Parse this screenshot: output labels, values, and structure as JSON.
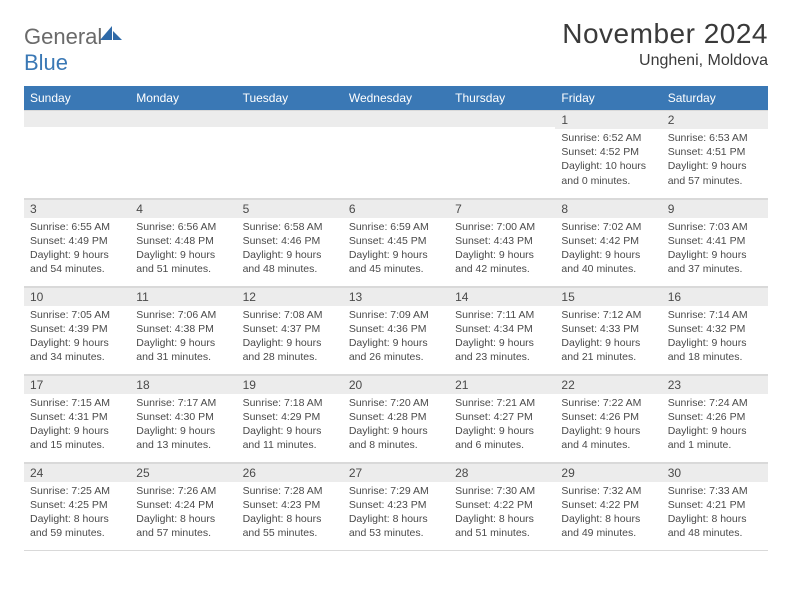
{
  "logo": {
    "general": "General",
    "blue": "Blue"
  },
  "title": "November 2024",
  "subtitle": "Ungheni, Moldova",
  "colors": {
    "header_bg": "#3a78b5",
    "header_fg": "#ffffff",
    "daynum_bg": "#ececec",
    "text": "#4a4a4a",
    "border": "#d9d9d9",
    "logo_gray": "#6a6a6a",
    "logo_blue": "#3a78b5"
  },
  "weekdays": [
    "Sunday",
    "Monday",
    "Tuesday",
    "Wednesday",
    "Thursday",
    "Friday",
    "Saturday"
  ],
  "weeks": [
    [
      null,
      null,
      null,
      null,
      null,
      {
        "n": "1",
        "sunrise": "Sunrise: 6:52 AM",
        "sunset": "Sunset: 4:52 PM",
        "day1": "Daylight: 10 hours",
        "day2": "and 0 minutes."
      },
      {
        "n": "2",
        "sunrise": "Sunrise: 6:53 AM",
        "sunset": "Sunset: 4:51 PM",
        "day1": "Daylight: 9 hours",
        "day2": "and 57 minutes."
      }
    ],
    [
      {
        "n": "3",
        "sunrise": "Sunrise: 6:55 AM",
        "sunset": "Sunset: 4:49 PM",
        "day1": "Daylight: 9 hours",
        "day2": "and 54 minutes."
      },
      {
        "n": "4",
        "sunrise": "Sunrise: 6:56 AM",
        "sunset": "Sunset: 4:48 PM",
        "day1": "Daylight: 9 hours",
        "day2": "and 51 minutes."
      },
      {
        "n": "5",
        "sunrise": "Sunrise: 6:58 AM",
        "sunset": "Sunset: 4:46 PM",
        "day1": "Daylight: 9 hours",
        "day2": "and 48 minutes."
      },
      {
        "n": "6",
        "sunrise": "Sunrise: 6:59 AM",
        "sunset": "Sunset: 4:45 PM",
        "day1": "Daylight: 9 hours",
        "day2": "and 45 minutes."
      },
      {
        "n": "7",
        "sunrise": "Sunrise: 7:00 AM",
        "sunset": "Sunset: 4:43 PM",
        "day1": "Daylight: 9 hours",
        "day2": "and 42 minutes."
      },
      {
        "n": "8",
        "sunrise": "Sunrise: 7:02 AM",
        "sunset": "Sunset: 4:42 PM",
        "day1": "Daylight: 9 hours",
        "day2": "and 40 minutes."
      },
      {
        "n": "9",
        "sunrise": "Sunrise: 7:03 AM",
        "sunset": "Sunset: 4:41 PM",
        "day1": "Daylight: 9 hours",
        "day2": "and 37 minutes."
      }
    ],
    [
      {
        "n": "10",
        "sunrise": "Sunrise: 7:05 AM",
        "sunset": "Sunset: 4:39 PM",
        "day1": "Daylight: 9 hours",
        "day2": "and 34 minutes."
      },
      {
        "n": "11",
        "sunrise": "Sunrise: 7:06 AM",
        "sunset": "Sunset: 4:38 PM",
        "day1": "Daylight: 9 hours",
        "day2": "and 31 minutes."
      },
      {
        "n": "12",
        "sunrise": "Sunrise: 7:08 AM",
        "sunset": "Sunset: 4:37 PM",
        "day1": "Daylight: 9 hours",
        "day2": "and 28 minutes."
      },
      {
        "n": "13",
        "sunrise": "Sunrise: 7:09 AM",
        "sunset": "Sunset: 4:36 PM",
        "day1": "Daylight: 9 hours",
        "day2": "and 26 minutes."
      },
      {
        "n": "14",
        "sunrise": "Sunrise: 7:11 AM",
        "sunset": "Sunset: 4:34 PM",
        "day1": "Daylight: 9 hours",
        "day2": "and 23 minutes."
      },
      {
        "n": "15",
        "sunrise": "Sunrise: 7:12 AM",
        "sunset": "Sunset: 4:33 PM",
        "day1": "Daylight: 9 hours",
        "day2": "and 21 minutes."
      },
      {
        "n": "16",
        "sunrise": "Sunrise: 7:14 AM",
        "sunset": "Sunset: 4:32 PM",
        "day1": "Daylight: 9 hours",
        "day2": "and 18 minutes."
      }
    ],
    [
      {
        "n": "17",
        "sunrise": "Sunrise: 7:15 AM",
        "sunset": "Sunset: 4:31 PM",
        "day1": "Daylight: 9 hours",
        "day2": "and 15 minutes."
      },
      {
        "n": "18",
        "sunrise": "Sunrise: 7:17 AM",
        "sunset": "Sunset: 4:30 PM",
        "day1": "Daylight: 9 hours",
        "day2": "and 13 minutes."
      },
      {
        "n": "19",
        "sunrise": "Sunrise: 7:18 AM",
        "sunset": "Sunset: 4:29 PM",
        "day1": "Daylight: 9 hours",
        "day2": "and 11 minutes."
      },
      {
        "n": "20",
        "sunrise": "Sunrise: 7:20 AM",
        "sunset": "Sunset: 4:28 PM",
        "day1": "Daylight: 9 hours",
        "day2": "and 8 minutes."
      },
      {
        "n": "21",
        "sunrise": "Sunrise: 7:21 AM",
        "sunset": "Sunset: 4:27 PM",
        "day1": "Daylight: 9 hours",
        "day2": "and 6 minutes."
      },
      {
        "n": "22",
        "sunrise": "Sunrise: 7:22 AM",
        "sunset": "Sunset: 4:26 PM",
        "day1": "Daylight: 9 hours",
        "day2": "and 4 minutes."
      },
      {
        "n": "23",
        "sunrise": "Sunrise: 7:24 AM",
        "sunset": "Sunset: 4:26 PM",
        "day1": "Daylight: 9 hours",
        "day2": "and 1 minute."
      }
    ],
    [
      {
        "n": "24",
        "sunrise": "Sunrise: 7:25 AM",
        "sunset": "Sunset: 4:25 PM",
        "day1": "Daylight: 8 hours",
        "day2": "and 59 minutes."
      },
      {
        "n": "25",
        "sunrise": "Sunrise: 7:26 AM",
        "sunset": "Sunset: 4:24 PM",
        "day1": "Daylight: 8 hours",
        "day2": "and 57 minutes."
      },
      {
        "n": "26",
        "sunrise": "Sunrise: 7:28 AM",
        "sunset": "Sunset: 4:23 PM",
        "day1": "Daylight: 8 hours",
        "day2": "and 55 minutes."
      },
      {
        "n": "27",
        "sunrise": "Sunrise: 7:29 AM",
        "sunset": "Sunset: 4:23 PM",
        "day1": "Daylight: 8 hours",
        "day2": "and 53 minutes."
      },
      {
        "n": "28",
        "sunrise": "Sunrise: 7:30 AM",
        "sunset": "Sunset: 4:22 PM",
        "day1": "Daylight: 8 hours",
        "day2": "and 51 minutes."
      },
      {
        "n": "29",
        "sunrise": "Sunrise: 7:32 AM",
        "sunset": "Sunset: 4:22 PM",
        "day1": "Daylight: 8 hours",
        "day2": "and 49 minutes."
      },
      {
        "n": "30",
        "sunrise": "Sunrise: 7:33 AM",
        "sunset": "Sunset: 4:21 PM",
        "day1": "Daylight: 8 hours",
        "day2": "and 48 minutes."
      }
    ]
  ]
}
